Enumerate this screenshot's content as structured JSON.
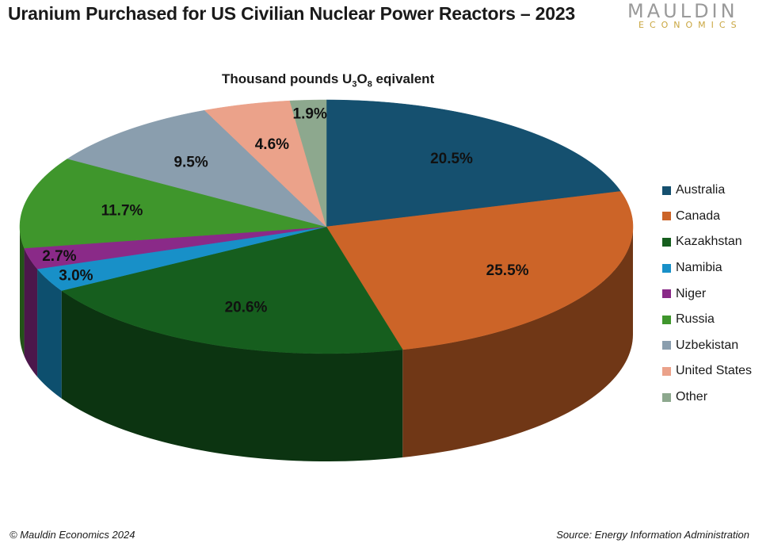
{
  "header": {
    "title": "Uranium Purchased for US Civilian Nuclear Power Reactors – 2023",
    "logo_main": "MAULDIN",
    "logo_sub": "ECONOMICS"
  },
  "footer": {
    "copyright": "© Mauldin Economics 2024",
    "source": "Source: Energy Information Administration"
  },
  "chart_data": {
    "type": "pie",
    "title": "Uranium Purchased for US Civilian Nuclear Power Reactors – 2023",
    "subtitle_prefix": "Thousand pounds U",
    "subtitle_sub1": "3",
    "subtitle_mid": "O",
    "subtitle_sub2": "8",
    "subtitle_suffix": " eqivalent",
    "legend_position": "right",
    "style": "3d",
    "slices": [
      {
        "label": "Australia",
        "value": 20.5,
        "display": "20.5%",
        "color": "#15506f"
      },
      {
        "label": "Canada",
        "value": 25.5,
        "display": "25.5%",
        "color": "#cc6428"
      },
      {
        "label": "Kazakhstan",
        "value": 20.6,
        "display": "20.6%",
        "color": "#165e1e"
      },
      {
        "label": "Namibia",
        "value": 3.0,
        "display": "3.0%",
        "color": "#1890c8"
      },
      {
        "label": "Niger",
        "value": 2.7,
        "display": "2.7%",
        "color": "#8a2a88"
      },
      {
        "label": "Russia",
        "value": 11.7,
        "display": "11.7%",
        "color": "#3f962c"
      },
      {
        "label": "Uzbekistan",
        "value": 9.5,
        "display": "9.5%",
        "color": "#8a9eae"
      },
      {
        "label": "United States",
        "value": 4.6,
        "display": "4.6%",
        "color": "#eba28a"
      },
      {
        "label": "Other",
        "value": 1.9,
        "display": "1.9%",
        "color": "#8da88e"
      }
    ]
  }
}
